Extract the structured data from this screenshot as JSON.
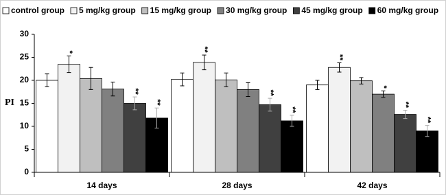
{
  "chart_data": {
    "type": "bar",
    "y_label": "PI",
    "categories": [
      "14 days",
      "28 days",
      "42 days"
    ],
    "ylim": [
      0,
      30
    ],
    "yticks": [
      0,
      5,
      10,
      15,
      20,
      25,
      30
    ],
    "series": [
      {
        "name": "control group",
        "color": "#ffffff",
        "values": [
          20.0,
          20.2,
          19.0
        ],
        "errors": [
          1.4,
          1.4,
          1.0
        ],
        "significance": [
          null,
          null,
          null
        ]
      },
      {
        "name": "5 mg/kg group",
        "color": "#f2f2f2",
        "values": [
          23.5,
          23.9,
          22.8
        ],
        "errors": [
          1.8,
          1.6,
          1.0
        ],
        "significance": [
          "*",
          "**",
          "**"
        ]
      },
      {
        "name": "15 mg/kg group",
        "color": "#bfbfbf",
        "values": [
          20.4,
          20.1,
          19.9
        ],
        "errors": [
          2.4,
          1.5,
          0.7
        ],
        "significance": [
          null,
          null,
          null
        ]
      },
      {
        "name": "30 mg/kg group",
        "color": "#808080",
        "values": [
          18.1,
          18.0,
          17.0
        ],
        "errors": [
          1.5,
          1.5,
          0.7
        ],
        "significance": [
          null,
          null,
          "*"
        ]
      },
      {
        "name": "45 mg/kg group",
        "color": "#404040",
        "values": [
          15.0,
          14.7,
          12.6
        ],
        "errors": [
          1.4,
          1.4,
          0.9
        ],
        "significance": [
          "**",
          "**",
          "**"
        ]
      },
      {
        "name": "60 mg/kg group",
        "color": "#000000",
        "values": [
          11.8,
          11.2,
          9.0
        ],
        "errors": [
          2.2,
          1.2,
          1.2
        ],
        "significance": [
          "**",
          "**",
          "**"
        ]
      }
    ]
  }
}
